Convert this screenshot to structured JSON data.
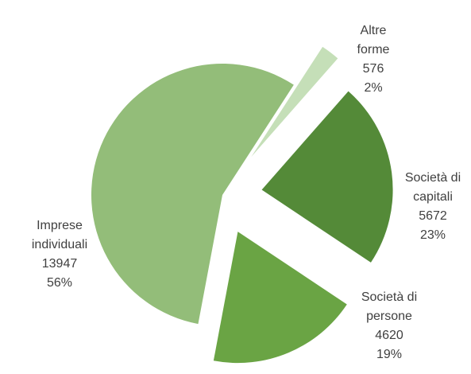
{
  "chart_data": {
    "type": "pie",
    "categories": [
      "Altre forme",
      "Società di capitali",
      "Società di persone",
      "Imprese individuali"
    ],
    "values": [
      576,
      5672,
      4620,
      13947
    ],
    "percent_labels": [
      "2%",
      "23%",
      "19%",
      "56%"
    ],
    "colors": [
      "#c5dfb8",
      "#548a38",
      "#6aa444",
      "#93bd79"
    ]
  }
}
